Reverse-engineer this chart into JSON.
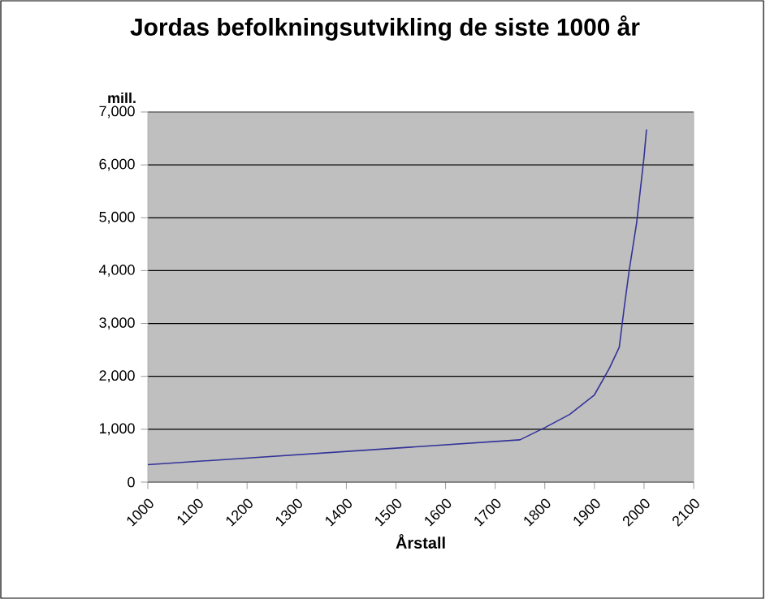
{
  "chart_data": {
    "type": "line",
    "title": "Jordas befolkningsutvikling de siste 1000 år",
    "xlabel": "Årstall",
    "ylabel": "mill.",
    "x": [
      1000,
      1750,
      1800,
      1850,
      1900,
      1930,
      1950,
      1960,
      1970,
      1985,
      2000,
      2005
    ],
    "series": [
      {
        "color": "#333399",
        "values": [
          330,
          800,
          1030,
          1280,
          1650,
          2150,
          2550,
          3300,
          4000,
          4900,
          6150,
          6670
        ]
      }
    ],
    "xlim": [
      1000,
      2100
    ],
    "xticks": [
      1000,
      1100,
      1200,
      1300,
      1400,
      1500,
      1600,
      1700,
      1800,
      1900,
      2000,
      2100
    ],
    "ylim": [
      0,
      7000
    ],
    "yticks": [
      0,
      {
        "value": 1000,
        "label": "1,000"
      },
      {
        "value": 2000,
        "label": "2,000"
      },
      {
        "value": 3000,
        "label": "3,000"
      },
      {
        "value": 4000,
        "label": "4,000"
      },
      {
        "value": 5000,
        "label": "5,000"
      },
      {
        "value": 6000,
        "label": "6,000"
      },
      {
        "value": 7000,
        "label": "7,000"
      }
    ],
    "grid": "y",
    "marker": "none",
    "line_style": "solid"
  }
}
